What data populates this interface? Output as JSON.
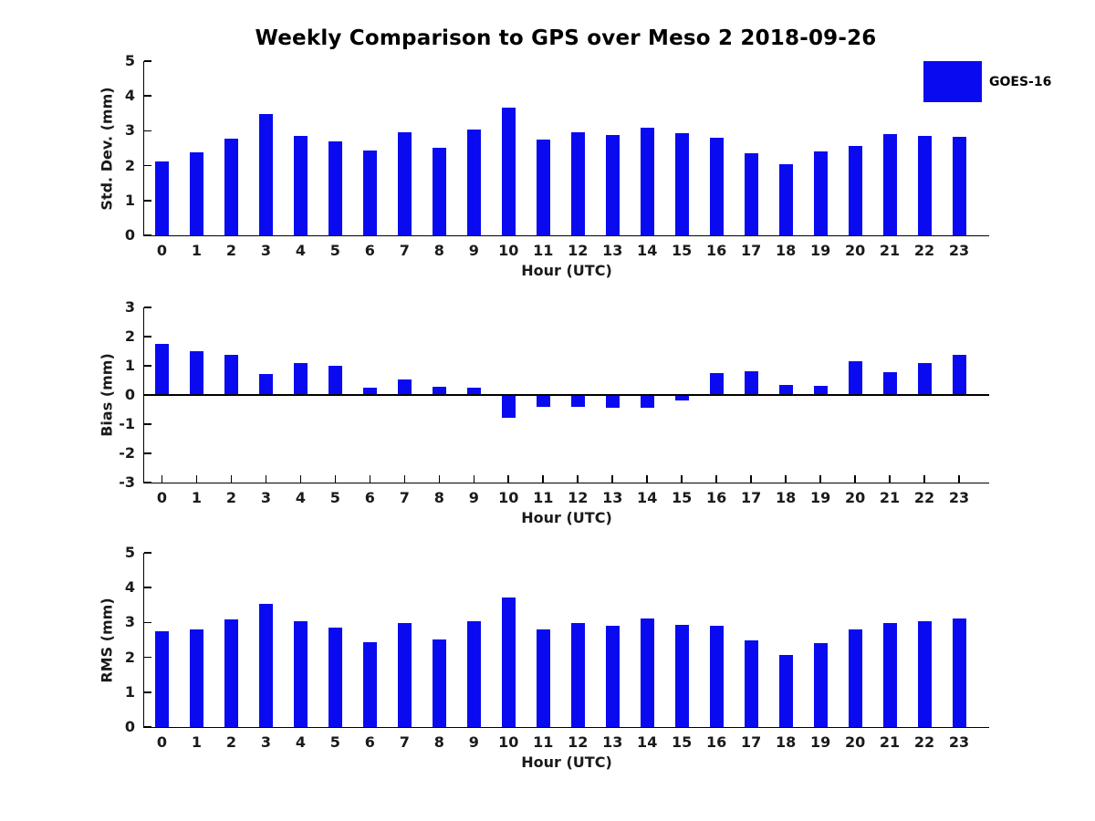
{
  "title": "Weekly Comparison to GPS over Meso 2 2018-09-26",
  "legend": {
    "label": "GOES-16",
    "color": "#0a0af0"
  },
  "xlabel": "Hour (UTC)",
  "hours": [
    "0",
    "1",
    "2",
    "3",
    "4",
    "5",
    "6",
    "7",
    "8",
    "9",
    "10",
    "11",
    "12",
    "13",
    "14",
    "15",
    "16",
    "17",
    "18",
    "19",
    "20",
    "21",
    "22",
    "23"
  ],
  "chart_data": [
    {
      "type": "bar",
      "id": "std-dev",
      "ylabel": "Std. Dev. (mm)",
      "ylim": [
        0,
        5
      ],
      "yticks": [
        0,
        1,
        2,
        3,
        4,
        5
      ],
      "color": "#0a0af0",
      "series_name": "GOES-16",
      "categories": [
        "0",
        "1",
        "2",
        "3",
        "4",
        "5",
        "6",
        "7",
        "8",
        "9",
        "10",
        "11",
        "12",
        "13",
        "14",
        "15",
        "16",
        "17",
        "18",
        "19",
        "20",
        "21",
        "22",
        "23"
      ],
      "values": [
        2.12,
        2.38,
        2.77,
        3.48,
        2.85,
        2.7,
        2.43,
        2.95,
        2.51,
        3.03,
        3.66,
        2.76,
        2.95,
        2.87,
        3.08,
        2.92,
        2.8,
        2.36,
        2.04,
        2.4,
        2.56,
        2.9,
        2.85,
        2.83
      ]
    },
    {
      "type": "bar",
      "id": "bias",
      "ylabel": "Bias (mm)",
      "ylim": [
        -3,
        3
      ],
      "yticks": [
        -3,
        -2,
        -1,
        0,
        1,
        2,
        3
      ],
      "color": "#0a0af0",
      "series_name": "GOES-16",
      "categories": [
        "0",
        "1",
        "2",
        "3",
        "4",
        "5",
        "6",
        "7",
        "8",
        "9",
        "10",
        "11",
        "12",
        "13",
        "14",
        "15",
        "16",
        "17",
        "18",
        "19",
        "20",
        "21",
        "22",
        "23"
      ],
      "values": [
        1.76,
        1.5,
        1.38,
        0.73,
        1.09,
        1.01,
        0.24,
        0.53,
        0.28,
        0.26,
        -0.78,
        -0.4,
        -0.42,
        -0.45,
        -0.45,
        -0.2,
        0.76,
        0.82,
        0.35,
        0.3,
        1.16,
        0.78,
        1.1,
        1.38
      ]
    },
    {
      "type": "bar",
      "id": "rms",
      "ylabel": "RMS (mm)",
      "ylim": [
        0,
        5
      ],
      "yticks": [
        0,
        1,
        2,
        3,
        4,
        5
      ],
      "color": "#0a0af0",
      "series_name": "GOES-16",
      "categories": [
        "0",
        "1",
        "2",
        "3",
        "4",
        "5",
        "6",
        "7",
        "8",
        "9",
        "10",
        "11",
        "12",
        "13",
        "14",
        "15",
        "16",
        "17",
        "18",
        "19",
        "20",
        "21",
        "22",
        "23"
      ],
      "values": [
        2.75,
        2.81,
        3.1,
        3.54,
        3.04,
        2.86,
        2.44,
        2.98,
        2.51,
        3.04,
        3.72,
        2.79,
        2.98,
        2.9,
        3.11,
        2.93,
        2.9,
        2.49,
        2.08,
        2.4,
        2.81,
        2.98,
        3.04,
        3.12
      ]
    }
  ]
}
